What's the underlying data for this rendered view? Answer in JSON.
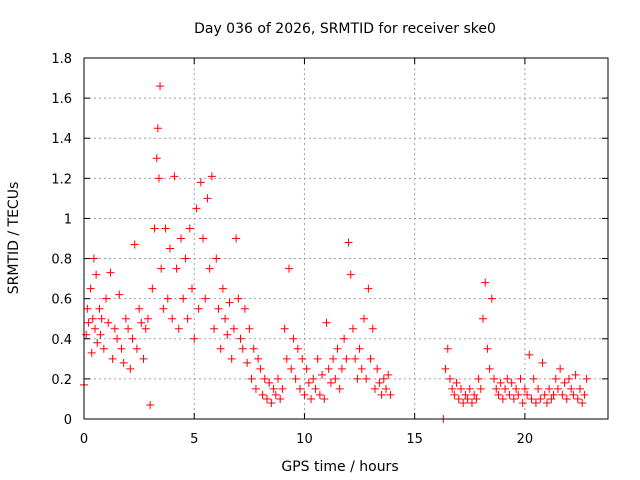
{
  "chart_data": {
    "type": "scatter",
    "title": "Day 036 of 2026, SRMTID for receiver ske0",
    "xlabel": "GPS time / hours",
    "ylabel": "SRMTID / TECUs",
    "xlim": [
      0,
      23.77
    ],
    "ylim": [
      0,
      1.8
    ],
    "xticks": [
      0,
      5,
      10,
      15,
      20
    ],
    "xtick_labels": [
      "0",
      "5",
      "10",
      "15",
      "20"
    ],
    "yticks": [
      0,
      0.2,
      0.4,
      0.6,
      0.8,
      1,
      1.2,
      1.4,
      1.6,
      1.8
    ],
    "ytick_labels": [
      "0",
      "0.2",
      "0.4",
      "0.6",
      "0.8",
      "1",
      "1.2",
      "1.4",
      "1.6",
      "1.8"
    ],
    "grid": true,
    "marker": "+",
    "series": [
      {
        "name": "SRMTID",
        "color": "#ff0000",
        "marker": "+",
        "x": [
          0.0,
          0.1,
          0.15,
          0.2,
          0.3,
          0.35,
          0.4,
          0.45,
          0.5,
          0.55,
          0.6,
          0.7,
          0.75,
          0.8,
          0.9,
          1.0,
          1.1,
          1.2,
          1.3,
          1.4,
          1.5,
          1.6,
          1.7,
          1.8,
          1.9,
          2.0,
          2.1,
          2.2,
          2.3,
          2.4,
          2.5,
          2.6,
          2.7,
          2.8,
          2.9,
          3.0,
          3.1,
          3.2,
          3.3,
          3.35,
          3.4,
          3.45,
          3.5,
          3.6,
          3.7,
          3.8,
          3.9,
          4.0,
          4.1,
          4.2,
          4.3,
          4.4,
          4.5,
          4.6,
          4.7,
          4.8,
          4.9,
          5.0,
          5.1,
          5.2,
          5.3,
          5.4,
          5.5,
          5.6,
          5.7,
          5.8,
          5.9,
          6.0,
          6.1,
          6.2,
          6.3,
          6.4,
          6.5,
          6.6,
          6.7,
          6.8,
          6.9,
          7.0,
          7.1,
          7.2,
          7.3,
          7.4,
          7.5,
          7.6,
          7.7,
          7.8,
          7.9,
          8.0,
          8.1,
          8.2,
          8.3,
          8.4,
          8.5,
          8.6,
          8.7,
          8.8,
          8.9,
          9.0,
          9.1,
          9.2,
          9.3,
          9.4,
          9.5,
          9.6,
          9.7,
          9.8,
          9.9,
          10.0,
          10.1,
          10.2,
          10.3,
          10.4,
          10.5,
          10.6,
          10.7,
          10.8,
          10.9,
          11.0,
          11.1,
          11.2,
          11.3,
          11.4,
          11.5,
          11.6,
          11.7,
          11.8,
          11.9,
          12.0,
          12.1,
          12.2,
          12.3,
          12.4,
          12.5,
          12.6,
          12.7,
          12.8,
          12.9,
          13.0,
          13.1,
          13.2,
          13.3,
          13.4,
          13.5,
          13.6,
          13.7,
          13.8,
          13.9,
          16.3,
          16.4,
          16.5,
          16.6,
          16.7,
          16.8,
          16.9,
          17.0,
          17.1,
          17.2,
          17.3,
          17.4,
          17.5,
          17.6,
          17.7,
          17.8,
          17.9,
          18.0,
          18.1,
          18.2,
          18.3,
          18.4,
          18.5,
          18.6,
          18.7,
          18.8,
          18.9,
          19.0,
          19.1,
          19.2,
          19.3,
          19.4,
          19.5,
          19.6,
          19.7,
          19.8,
          19.9,
          20.0,
          20.1,
          20.2,
          20.3,
          20.4,
          20.5,
          20.6,
          20.7,
          20.8,
          20.9,
          21.0,
          21.1,
          21.2,
          21.3,
          21.4,
          21.5,
          21.6,
          21.7,
          21.8,
          21.9,
          22.0,
          22.1,
          22.2,
          22.3,
          22.4,
          22.5,
          22.6,
          22.7,
          22.8
        ],
        "y": [
          0.17,
          0.42,
          0.55,
          0.48,
          0.65,
          0.33,
          0.5,
          0.8,
          0.45,
          0.72,
          0.38,
          0.55,
          0.42,
          0.5,
          0.35,
          0.6,
          0.48,
          0.73,
          0.3,
          0.45,
          0.4,
          0.62,
          0.35,
          0.28,
          0.5,
          0.45,
          0.25,
          0.4,
          0.87,
          0.35,
          0.55,
          0.48,
          0.3,
          0.45,
          0.5,
          0.07,
          0.65,
          0.95,
          1.3,
          1.45,
          1.2,
          1.66,
          0.75,
          0.55,
          0.95,
          0.6,
          0.85,
          0.5,
          1.21,
          0.75,
          0.45,
          0.9,
          0.6,
          0.8,
          0.5,
          0.95,
          0.65,
          0.4,
          1.05,
          0.55,
          1.18,
          0.9,
          0.6,
          1.1,
          0.75,
          1.21,
          0.45,
          0.8,
          0.55,
          0.35,
          0.65,
          0.5,
          0.42,
          0.58,
          0.3,
          0.45,
          0.9,
          0.6,
          0.4,
          0.35,
          0.55,
          0.28,
          0.45,
          0.2,
          0.35,
          0.15,
          0.3,
          0.25,
          0.12,
          0.2,
          0.1,
          0.18,
          0.08,
          0.15,
          0.12,
          0.2,
          0.1,
          0.15,
          0.45,
          0.3,
          0.75,
          0.25,
          0.4,
          0.2,
          0.35,
          0.15,
          0.3,
          0.12,
          0.25,
          0.18,
          0.1,
          0.2,
          0.15,
          0.3,
          0.12,
          0.22,
          0.1,
          0.48,
          0.25,
          0.18,
          0.3,
          0.2,
          0.35,
          0.15,
          0.25,
          0.4,
          0.3,
          0.88,
          0.72,
          0.45,
          0.3,
          0.2,
          0.35,
          0.25,
          0.5,
          0.2,
          0.65,
          0.3,
          0.45,
          0.15,
          0.25,
          0.18,
          0.12,
          0.2,
          0.15,
          0.22,
          0.12,
          0.0,
          0.25,
          0.35,
          0.2,
          0.15,
          0.12,
          0.18,
          0.1,
          0.15,
          0.08,
          0.12,
          0.1,
          0.15,
          0.08,
          0.12,
          0.1,
          0.2,
          0.15,
          0.5,
          0.68,
          0.35,
          0.25,
          0.6,
          0.2,
          0.15,
          0.12,
          0.18,
          0.1,
          0.15,
          0.2,
          0.12,
          0.18,
          0.1,
          0.15,
          0.12,
          0.2,
          0.08,
          0.15,
          0.12,
          0.32,
          0.1,
          0.2,
          0.08,
          0.15,
          0.1,
          0.28,
          0.12,
          0.08,
          0.15,
          0.1,
          0.12,
          0.2,
          0.15,
          0.25,
          0.12,
          0.18,
          0.1,
          0.2,
          0.15,
          0.12,
          0.22,
          0.1,
          0.15,
          0.08,
          0.12,
          0.2
        ]
      }
    ]
  }
}
